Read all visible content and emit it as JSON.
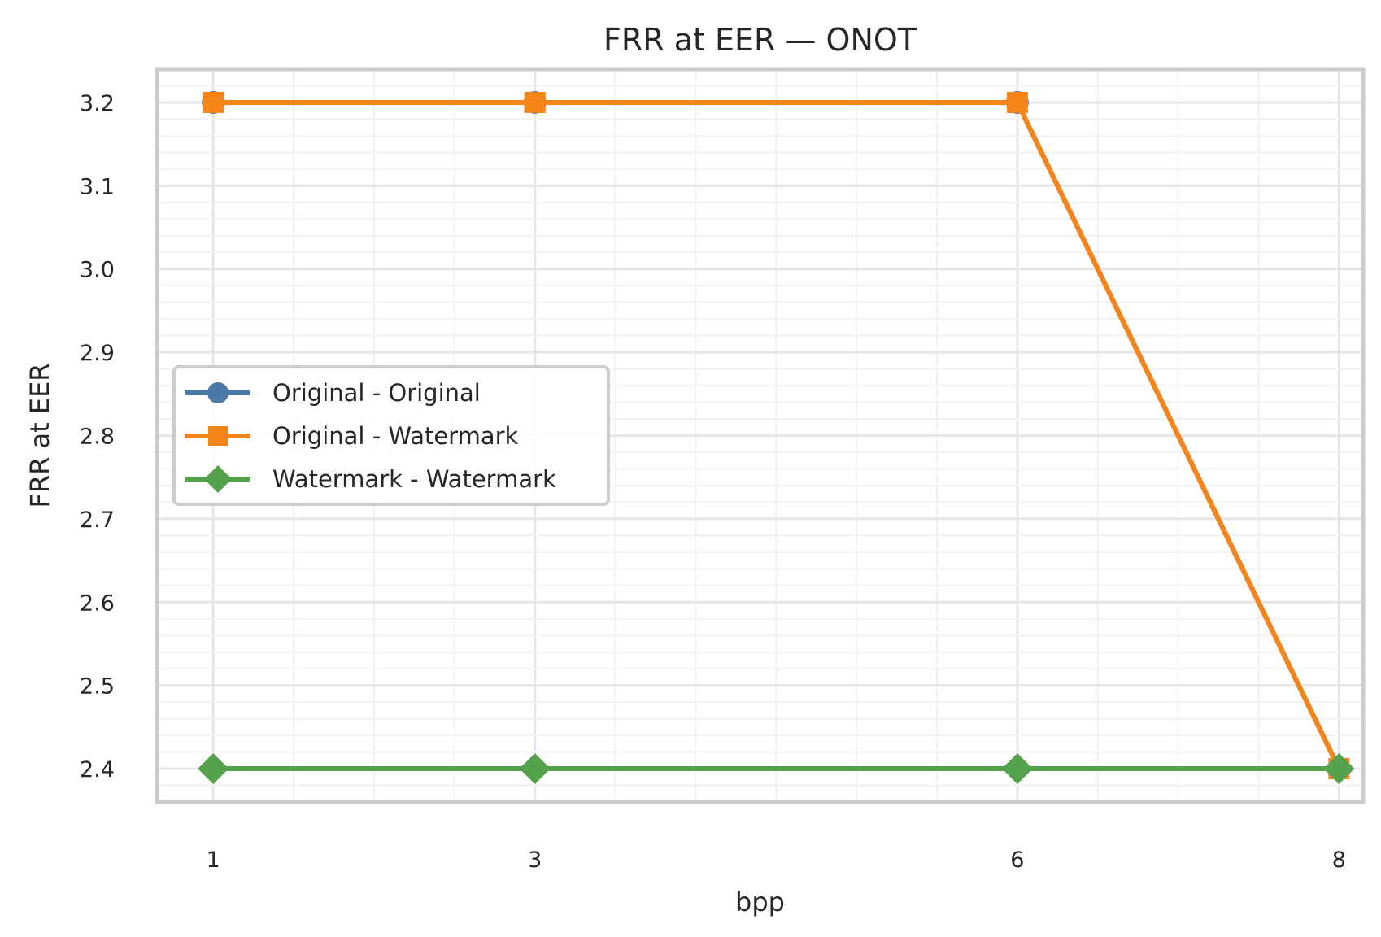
{
  "chart_data": {
    "type": "line",
    "title": "FRR at EER — ONOT",
    "xlabel": "bpp",
    "ylabel": "FRR at EER",
    "x": [
      1,
      3,
      6,
      8
    ],
    "x_tick_labels": [
      "1",
      "3",
      "6",
      "8"
    ],
    "xlim": [
      0.65,
      8.15
    ],
    "y_ticks": [
      "2.4",
      "2.5",
      "2.6",
      "2.7",
      "2.8",
      "2.9",
      "3.0",
      "3.1",
      "3.2"
    ],
    "ylim": [
      2.36,
      3.24
    ],
    "grid": true,
    "legend_position": "center-left",
    "series": [
      {
        "name": "Original - Original",
        "values": [
          3.2,
          3.2,
          3.2,
          2.4
        ],
        "color": "#4c78a8",
        "marker": "circle"
      },
      {
        "name": "Original - Watermark",
        "values": [
          3.2,
          3.2,
          3.2,
          2.4
        ],
        "color": "#f58518",
        "marker": "square"
      },
      {
        "name": "Watermark - Watermark",
        "values": [
          2.4,
          2.4,
          2.4,
          2.4
        ],
        "color": "#54a24b",
        "marker": "diamond"
      }
    ]
  }
}
